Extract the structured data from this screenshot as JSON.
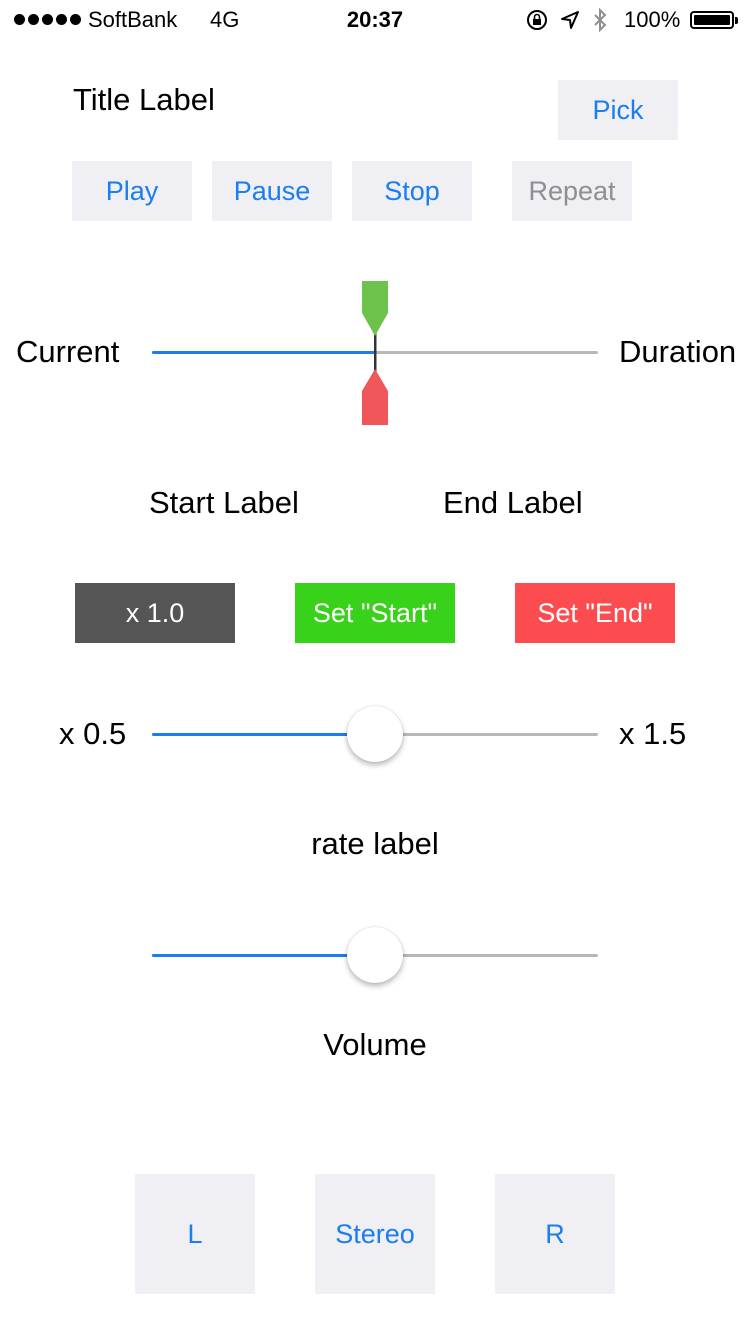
{
  "status_bar": {
    "carrier": "SoftBank",
    "network": "4G",
    "time": "20:37",
    "battery": "100%"
  },
  "player": {
    "title": "Title Label",
    "pick_label": "Pick",
    "play_label": "Play",
    "pause_label": "Pause",
    "stop_label": "Stop",
    "repeat_label": "Repeat"
  },
  "position": {
    "current_label": "Current",
    "duration_label": "Duration",
    "progress": 0.5,
    "start_label": "Start Label",
    "end_label": "End Label"
  },
  "markers": {
    "start_color": "#6cc24a",
    "end_color": "#f0575a"
  },
  "actions": {
    "rate_reset_label": "x 1.0",
    "set_start_label": "Set \"Start\"",
    "set_end_label": "Set \"End\"",
    "rate_reset_color": "#555555",
    "set_start_color": "#39d21a",
    "set_end_color": "#fd4c4f"
  },
  "rate": {
    "min_label": "x 0.5",
    "max_label": "x 1.5",
    "value": 0.5,
    "rate_label": "rate label"
  },
  "volume": {
    "value": 0.5,
    "label": "Volume"
  },
  "channels": {
    "left_label": "L",
    "stereo_label": "Stereo",
    "right_label": "R"
  },
  "colors": {
    "accent": "#1a7df0",
    "button_bg": "#efeff4"
  }
}
